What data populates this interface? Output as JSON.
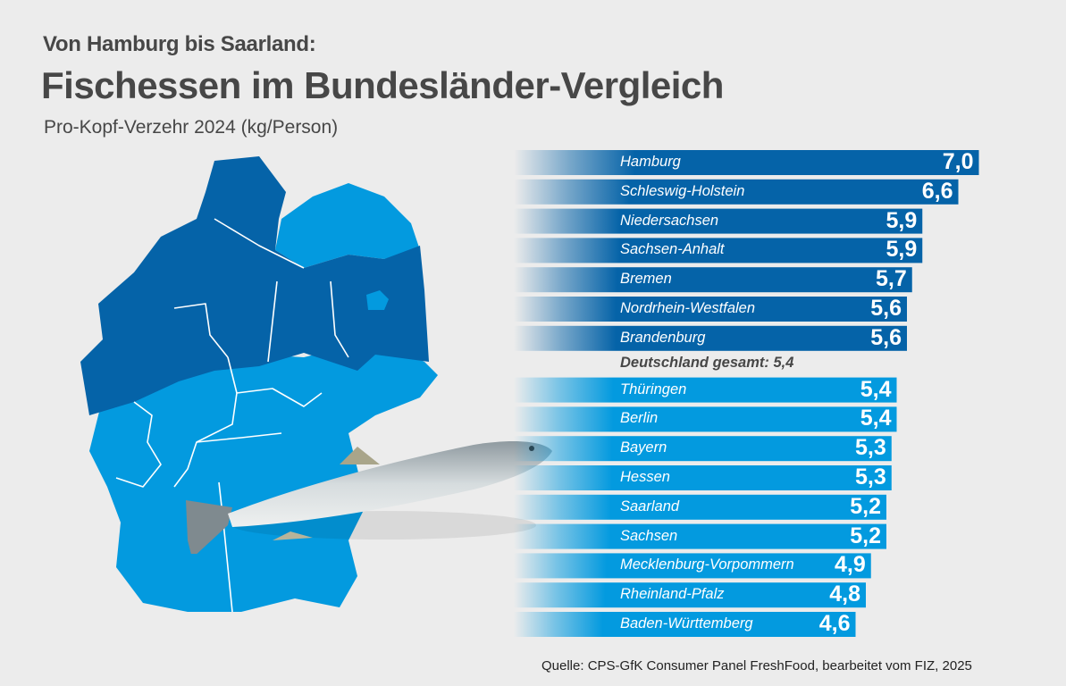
{
  "header": {
    "pretitle": "Von Hamburg bis Saarland:",
    "title": "Fischessen im Bundesländer-Vergleich",
    "subtitle": "Pro-Kopf-Verzehr 2024 (kg/Person)"
  },
  "source": "Quelle: CPS-GfK Consumer Panel FreshFood, bearbeitet vom FIZ, 2025",
  "colors": {
    "above_average": "#0563a8",
    "below_average": "#039adf",
    "background": "#ececec",
    "text": "#474747"
  },
  "chart_data": {
    "type": "bar",
    "orientation": "horizontal",
    "title": "Fischessen im Bundesländer-Vergleich",
    "subtitle": "Pro-Kopf-Verzehr 2024 (kg/Person)",
    "unit": "kg/Person",
    "reference": {
      "label": "Deutschland gesamt: 5,4",
      "value": 5.4
    },
    "categories": [
      "Hamburg",
      "Schleswig-Holstein",
      "Niedersachsen",
      "Sachsen-Anhalt",
      "Bremen",
      "Nordrhein-Westfalen",
      "Brandenburg",
      "Thüringen",
      "Berlin",
      "Bayern",
      "Hessen",
      "Saarland",
      "Sachsen",
      "Mecklenburg-Vorpommern",
      "Rheinland-Pfalz",
      "Baden-Württemberg"
    ],
    "values": [
      7.0,
      6.6,
      5.9,
      5.9,
      5.7,
      5.6,
      5.6,
      5.4,
      5.4,
      5.3,
      5.3,
      5.2,
      5.2,
      4.9,
      4.8,
      4.6
    ],
    "value_labels": [
      "7,0",
      "6,6",
      "5,9",
      "5,9",
      "5,7",
      "5,6",
      "5,6",
      "5,4",
      "5,4",
      "5,3",
      "5,3",
      "5,2",
      "5,2",
      "4,9",
      "4,8",
      "4,6"
    ],
    "groups": [
      "above",
      "above",
      "above",
      "above",
      "above",
      "above",
      "above",
      "below",
      "below",
      "below",
      "below",
      "below",
      "below",
      "below",
      "below",
      "below"
    ],
    "legend": "none",
    "grid": false
  },
  "map": {
    "caption": "Germany map, states colored by above/below national average"
  },
  "image": {
    "caption": "trout fish photo"
  }
}
